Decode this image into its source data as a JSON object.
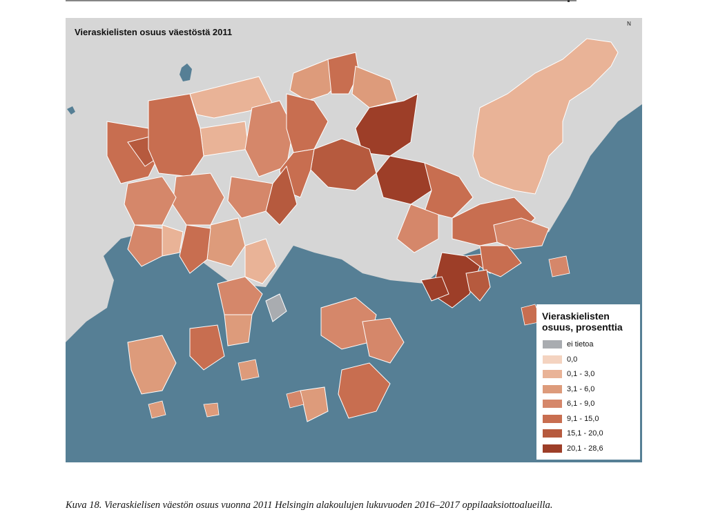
{
  "map": {
    "title": "Vieraskielisten osuus väestöstä 2011",
    "north_label": "N",
    "colors": {
      "land_outside": "#d6d6d6",
      "water": "#567f95",
      "border": "#ffffff"
    }
  },
  "legend": {
    "title_line1": "Vieraskielisten",
    "title_line2": "osuus, prosenttia",
    "classes": [
      {
        "label": "ei tietoa",
        "color": "#a9acb0"
      },
      {
        "label": "0,0",
        "color": "#f4d3c0"
      },
      {
        "label": "0,1 - 3,0",
        "color": "#e9b397"
      },
      {
        "label": "3,1 - 6,0",
        "color": "#dd9b7b"
      },
      {
        "label": "6,1 - 9,0",
        "color": "#d5876a"
      },
      {
        "label": "9,1 - 15,0",
        "color": "#c86e50"
      },
      {
        "label": "15,1 - 20,0",
        "color": "#b65a3e"
      },
      {
        "label": "20,1 - 28,6",
        "color": "#9d3e28"
      }
    ]
  },
  "caption": "Kuva 18. Vieraskielisen väestön osuus vuonna 2011 Helsingin alakoulujen lukuvuoden 2016–2017 oppilaaksiottoalueilla."
}
